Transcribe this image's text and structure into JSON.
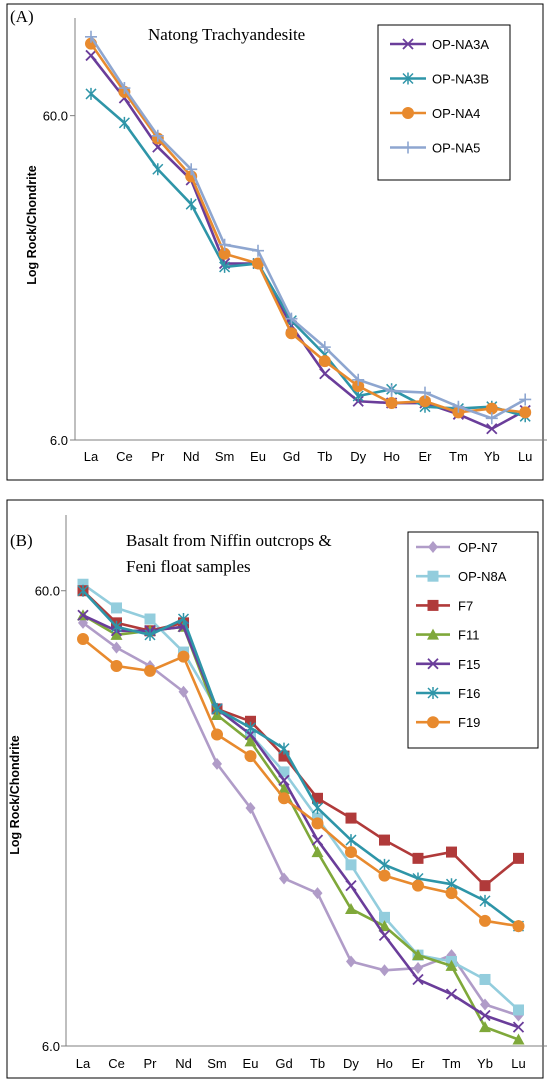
{
  "colors": {
    "purple": "#6A3D9A",
    "teal": "#2E95A8",
    "orange": "#E88A2E",
    "lightblue": "#8EA6D0",
    "lavender": "#B09CC8",
    "skyblue": "#93CDDD",
    "red": "#B03A3A",
    "green": "#7FA83A"
  },
  "chart_data": [
    {
      "id": "A",
      "panel_label": "(A)",
      "type": "line",
      "title": "Natong Trachyandesite",
      "ylabel": "Log Rock/Chondrite",
      "yscale": "log",
      "ylim": [
        6.0,
        120
      ],
      "yticks": [
        6.0,
        60.0
      ],
      "ytick_labels": [
        "6.0",
        "60.0"
      ],
      "categories": [
        "La",
        "Ce",
        "Pr",
        "Nd",
        "Sm",
        "Eu",
        "Gd",
        "Tb",
        "Dy",
        "Ho",
        "Er",
        "Tm",
        "Yb",
        "Lu"
      ],
      "legend_position": "top-right",
      "series": [
        {
          "name": "OP-NA3A",
          "color": "#6A3D9A",
          "marker": "x",
          "values": [
            92,
            68,
            48,
            38,
            21,
            21,
            13.5,
            9.6,
            7.9,
            7.8,
            7.8,
            7.2,
            6.5,
            7.4
          ]
        },
        {
          "name": "OP-NA3B",
          "color": "#2E95A8",
          "marker": "asterisk",
          "values": [
            70,
            57,
            41,
            32,
            20.5,
            21,
            14,
            11,
            8.2,
            8.6,
            7.6,
            7.5,
            7.6,
            7.1
          ]
        },
        {
          "name": "OP-NA4",
          "color": "#E88A2E",
          "marker": "circle",
          "values": [
            100,
            71,
            51,
            39,
            22.5,
            21,
            12.8,
            10.5,
            8.8,
            7.8,
            7.9,
            7.3,
            7.5,
            7.3
          ]
        },
        {
          "name": "OP-NA5",
          "color": "#8EA6D0",
          "marker": "plus",
          "values": [
            105,
            73,
            52,
            41,
            24,
            23,
            14.2,
            11.6,
            9.2,
            8.5,
            8.4,
            7.6,
            7.0,
            8.0
          ]
        }
      ]
    },
    {
      "id": "B",
      "panel_label": "(B)",
      "type": "line",
      "title": "Basalt from Niffin outcrops & Feni float samples",
      "title_lines": [
        "Basalt from Niffin outcrops &",
        "Feni float samples"
      ],
      "ylabel": "Log Rock/Chondrite",
      "yscale": "log",
      "ylim": [
        6.0,
        88
      ],
      "yticks": [
        6.0,
        60.0
      ],
      "ytick_labels": [
        "6.0",
        "60.0"
      ],
      "categories": [
        "La",
        "Ce",
        "Pr",
        "Nd",
        "Sm",
        "Eu",
        "Gd",
        "Tb",
        "Dy",
        "Ho",
        "Er",
        "Tm",
        "Yb",
        "Lu"
      ],
      "legend_position": "top-right",
      "series": [
        {
          "name": "OP-N7",
          "color": "#B09CC8",
          "marker": "diamond",
          "values": [
            51,
            45,
            41,
            36,
            25,
            20,
            14,
            13,
            9.2,
            8.8,
            8.9,
            9.5,
            7.4,
            7.0
          ]
        },
        {
          "name": "OP-N8A",
          "color": "#93CDDD",
          "marker": "square",
          "values": [
            62,
            55,
            52,
            44,
            33,
            29,
            24,
            19,
            15,
            11.5,
            9.5,
            9.2,
            8.4,
            7.2
          ]
        },
        {
          "name": "F7",
          "color": "#B03A3A",
          "marker": "square",
          "values": [
            60,
            51,
            49,
            51,
            33,
            31,
            26,
            21,
            19,
            17,
            15.5,
            16,
            13.5,
            15.5
          ]
        },
        {
          "name": "F11",
          "color": "#7FA83A",
          "marker": "triangle",
          "values": [
            53,
            48,
            49,
            50,
            32,
            28,
            22,
            16,
            12,
            11,
            9.5,
            9.0,
            6.6,
            6.2
          ]
        },
        {
          "name": "F15",
          "color": "#6A3D9A",
          "marker": "x",
          "values": [
            53,
            49,
            49,
            50,
            33,
            29,
            23,
            17,
            13.5,
            10.5,
            8.4,
            7.8,
            7.0,
            6.6
          ]
        },
        {
          "name": "F16",
          "color": "#2E95A8",
          "marker": "asterisk",
          "values": [
            60,
            50,
            48,
            52,
            33,
            30,
            27,
            20,
            17,
            15,
            14,
            13.6,
            12.5,
            11.0
          ]
        },
        {
          "name": "F19",
          "color": "#E88A2E",
          "marker": "circle",
          "values": [
            47,
            41,
            40,
            43,
            29,
            26,
            21,
            18.5,
            16,
            14.2,
            13.5,
            13.0,
            11.3,
            11.0
          ]
        }
      ]
    }
  ]
}
